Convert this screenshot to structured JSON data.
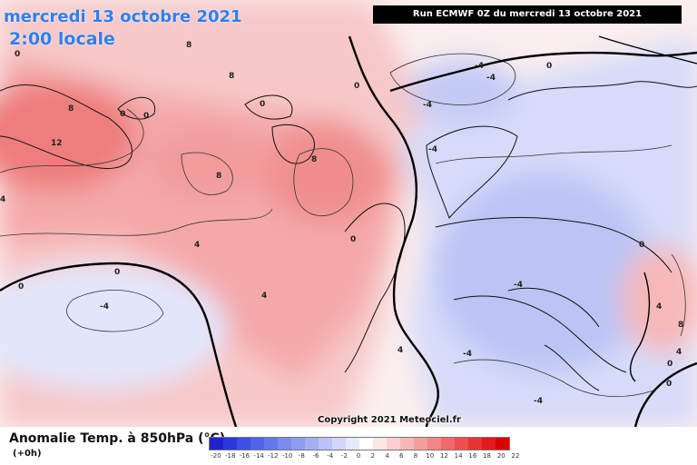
{
  "header": {
    "date": "mercredi 13 octobre 2021",
    "time": "2:00 locale",
    "run_info": "Run ECMWF 0Z du mercredi 13 octobre 2021"
  },
  "copyright": "Copyright 2021 Meteociel.fr",
  "legend": {
    "title": "Anomalie Temp. à 850hPa (°C)",
    "subtitle": "(+0h)",
    "ticks": [
      "-20",
      "-18",
      "-16",
      "-14",
      "-12",
      "-10",
      "-8",
      "-6",
      "-4",
      "-2",
      "0",
      "2",
      "4",
      "6",
      "8",
      "10",
      "12",
      "14",
      "16",
      "18",
      "20",
      "22"
    ],
    "colors": [
      "#1e22c8",
      "#2b38d8",
      "#3b50e0",
      "#4d66e6",
      "#6379ea",
      "#7a8cee",
      "#909ef1",
      "#a5b0f4",
      "#bac2f7",
      "#d2d7fa",
      "#e6e9fc",
      "#ffffff",
      "#fde6e6",
      "#fbcfcf",
      "#f8b7b7",
      "#f59e9e",
      "#f28585",
      "#ef6b6b",
      "#ec5050",
      "#e73535",
      "#e21a1a",
      "#d90000"
    ]
  },
  "contour_labels": [
    "8",
    "-4",
    "0",
    "8",
    "12",
    "0",
    "0",
    "0",
    "8",
    "-4",
    "0",
    "-4",
    "0",
    "0",
    "4",
    "8",
    "-4",
    "8",
    "4",
    "0",
    "-4",
    "0",
    "4",
    "4",
    "-4",
    "0",
    "8",
    "4",
    "4",
    "0",
    "0",
    "-4",
    "-4"
  ]
}
